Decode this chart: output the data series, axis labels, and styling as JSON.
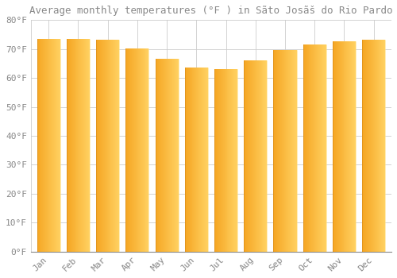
{
  "title": "Average monthly temperatures (°F ) in Sãto Josãš do Rio Pardo",
  "months": [
    "Jan",
    "Feb",
    "Mar",
    "Apr",
    "May",
    "Jun",
    "Jul",
    "Aug",
    "Sep",
    "Oct",
    "Nov",
    "Dec"
  ],
  "values": [
    73.4,
    73.6,
    73.2,
    70.2,
    66.5,
    63.5,
    63.0,
    66.2,
    69.7,
    71.5,
    72.7,
    73.1
  ],
  "bar_color_left": "#F5A623",
  "bar_color_right": "#FFD060",
  "background_color": "#FFFFFF",
  "grid_color": "#CCCCCC",
  "text_color": "#888888",
  "ylim": [
    0,
    80
  ],
  "yticks": [
    0,
    10,
    20,
    30,
    40,
    50,
    60,
    70,
    80
  ],
  "title_fontsize": 9,
  "tick_fontsize": 8
}
